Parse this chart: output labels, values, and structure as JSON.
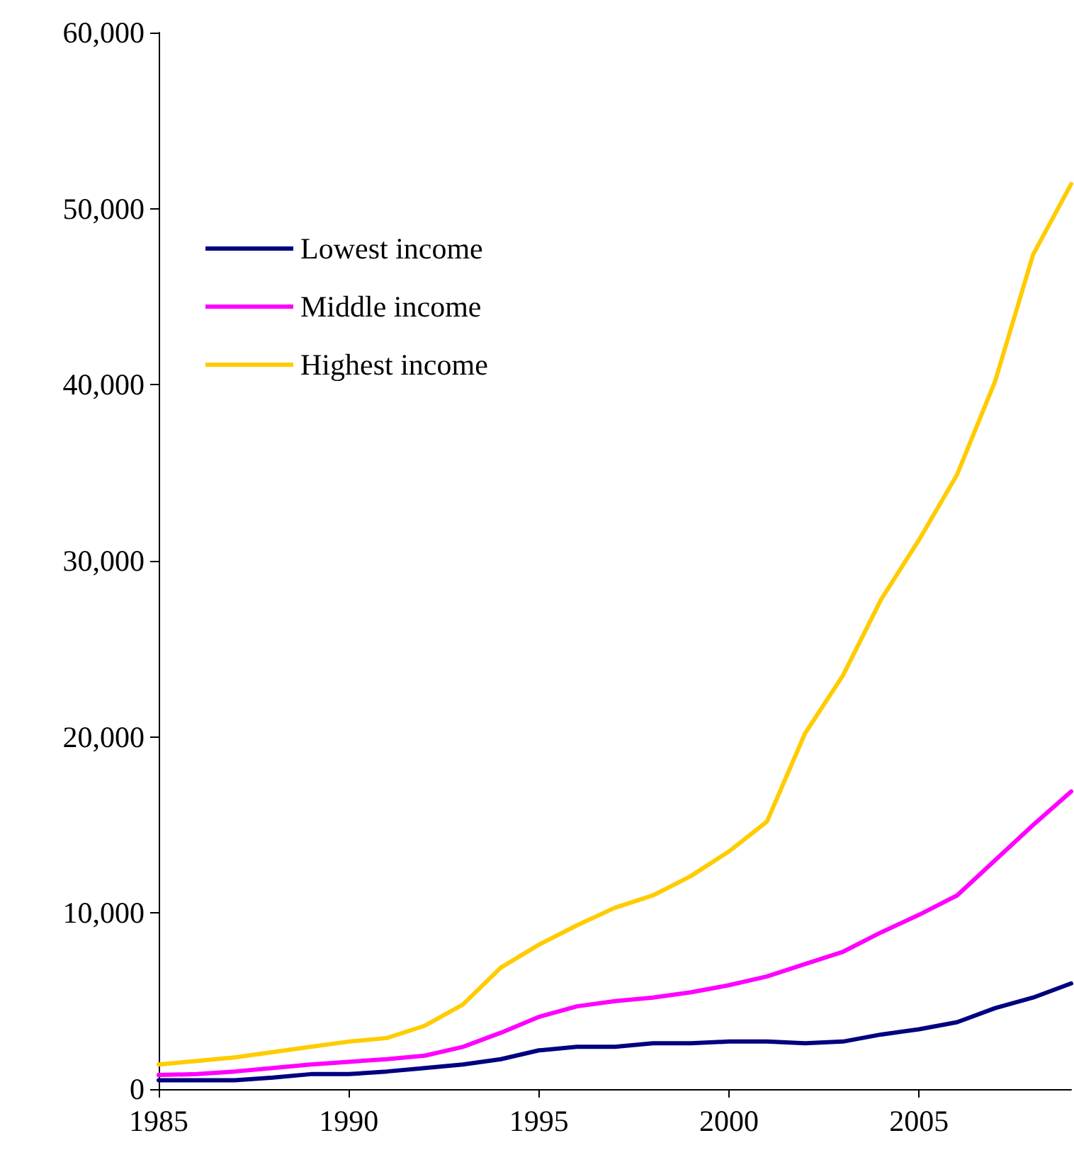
{
  "chart_data": {
    "type": "line",
    "x": [
      1985,
      1986,
      1987,
      1988,
      1989,
      1990,
      1991,
      1992,
      1993,
      1994,
      1995,
      1996,
      1997,
      1998,
      1999,
      2000,
      2001,
      2002,
      2003,
      2004,
      2005,
      2006,
      2007,
      2008,
      2009
    ],
    "series": [
      {
        "name": "Lowest income",
        "color": "#000080",
        "values": [
          500,
          500,
          500,
          650,
          850,
          850,
          1000,
          1200,
          1400,
          1700,
          2200,
          2400,
          2400,
          2600,
          2600,
          2700,
          2700,
          2600,
          2700,
          3100,
          3400,
          3800,
          4600,
          5200,
          6000
        ]
      },
      {
        "name": "Middle income",
        "color": "#ff00ff",
        "values": [
          800,
          850,
          1000,
          1200,
          1400,
          1550,
          1700,
          1900,
          2400,
          3200,
          4100,
          4700,
          5000,
          5200,
          5500,
          5900,
          6400,
          7100,
          7800,
          8900,
          9900,
          11000,
          13000,
          15000,
          16900
        ]
      },
      {
        "name": "Highest income",
        "color": "#ffcc00",
        "values": [
          1400,
          1600,
          1800,
          2100,
          2400,
          2700,
          2900,
          3600,
          4800,
          6900,
          8200,
          9300,
          10300,
          11000,
          12100,
          13500,
          15200,
          20200,
          23500,
          27800,
          31200,
          34900,
          40200,
          47400,
          51400
        ]
      }
    ],
    "xlim": [
      1985,
      2009
    ],
    "xticks": [
      1985,
      1990,
      1995,
      2000,
      2005
    ],
    "ylim": [
      0,
      60000
    ],
    "yticks": [
      {
        "value": 0,
        "label": "0"
      },
      {
        "value": 10000,
        "label": "10,000"
      },
      {
        "value": 20000,
        "label": "20,000"
      },
      {
        "value": 30000,
        "label": "30,000"
      },
      {
        "value": 40000,
        "label": "40,000"
      },
      {
        "value": 50000,
        "label": "50,000"
      },
      {
        "value": 60000,
        "label": "60,000"
      }
    ],
    "grid": false,
    "legend": "top left",
    "marker": "none",
    "line_style": "solid"
  }
}
